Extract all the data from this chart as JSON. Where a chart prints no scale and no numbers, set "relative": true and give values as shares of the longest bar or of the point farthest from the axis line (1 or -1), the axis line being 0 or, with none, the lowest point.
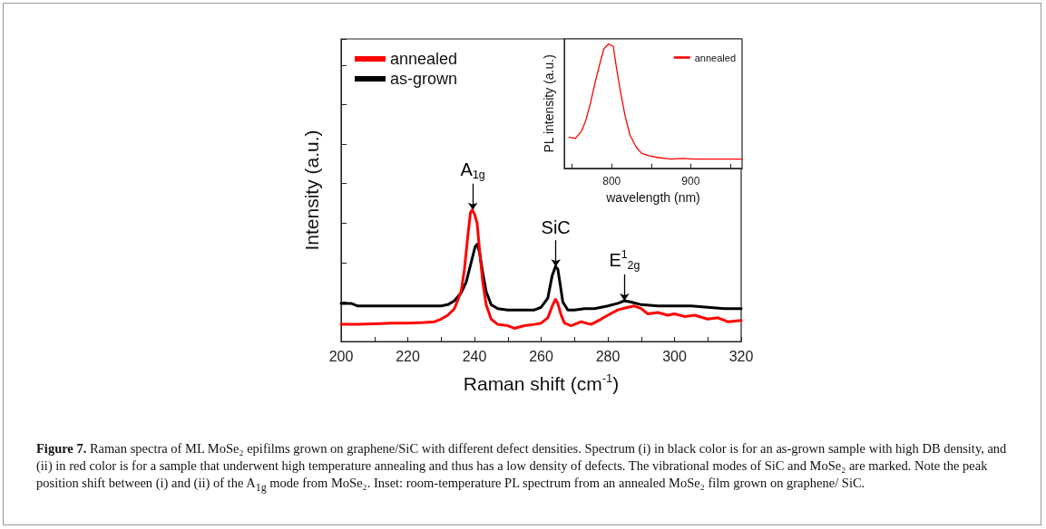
{
  "chart_data": [
    {
      "type": "line",
      "relative": true,
      "xlabel": "Raman shift (cm$^{-1}$)",
      "ylabel": "Intensity (a.u.)",
      "xlim": [
        200,
        320
      ],
      "xticks": [
        200,
        {
          "value": 210,
          "label": null
        },
        220,
        {
          "value": 230,
          "label": null
        },
        240,
        {
          "value": 250,
          "label": null
        },
        260,
        {
          "value": 270,
          "label": null
        },
        280,
        {
          "value": 290,
          "label": null
        },
        300,
        {
          "value": 310,
          "label": null
        },
        320
      ],
      "tick_labels": "x",
      "legend": "top left",
      "grid": false,
      "marker": "none",
      "line_style": "solid",
      "series": [
        {
          "name": "annealed",
          "color": "#ff0000",
          "x": [
            200,
            205,
            210,
            215,
            220,
            225,
            228,
            230,
            232,
            234,
            236,
            237,
            238,
            238.8,
            239.3,
            240,
            240.8,
            241.5,
            242.5,
            243.5,
            245,
            247,
            250,
            252,
            255,
            258,
            260,
            262,
            263.5,
            264.3,
            265,
            266,
            267,
            269,
            272,
            275,
            278,
            280,
            283,
            286,
            288,
            290,
            292,
            295,
            298,
            300,
            303,
            306,
            310,
            313,
            316,
            320
          ],
          "values": [
            0.13,
            0.13,
            0.135,
            0.14,
            0.14,
            0.145,
            0.15,
            0.17,
            0.2,
            0.25,
            0.38,
            0.55,
            0.8,
            0.98,
            1.0,
            0.97,
            0.9,
            0.7,
            0.45,
            0.28,
            0.17,
            0.13,
            0.12,
            0.1,
            0.12,
            0.13,
            0.14,
            0.18,
            0.28,
            0.32,
            0.29,
            0.2,
            0.14,
            0.12,
            0.15,
            0.13,
            0.17,
            0.2,
            0.24,
            0.26,
            0.27,
            0.25,
            0.21,
            0.22,
            0.2,
            0.21,
            0.19,
            0.2,
            0.17,
            0.18,
            0.15,
            0.16
          ]
        },
        {
          "name": "as-grown",
          "color": "#000000",
          "x": [
            200,
            203,
            205,
            210,
            215,
            220,
            225,
            230,
            232,
            234,
            236,
            237.5,
            239,
            240.2,
            240.8,
            241.5,
            242.5,
            243.5,
            245,
            247,
            250,
            255,
            258,
            260,
            262,
            263.3,
            264.3,
            265,
            265.8,
            266.5,
            268,
            270,
            273,
            276,
            278,
            280,
            283,
            285,
            287,
            290,
            295,
            300,
            305,
            310,
            315,
            320
          ],
          "values": [
            0.29,
            0.29,
            0.27,
            0.27,
            0.27,
            0.27,
            0.27,
            0.27,
            0.28,
            0.31,
            0.37,
            0.45,
            0.6,
            0.72,
            0.74,
            0.68,
            0.52,
            0.38,
            0.28,
            0.25,
            0.24,
            0.24,
            0.24,
            0.26,
            0.33,
            0.5,
            0.57,
            0.55,
            0.42,
            0.3,
            0.24,
            0.24,
            0.25,
            0.25,
            0.26,
            0.27,
            0.29,
            0.31,
            0.3,
            0.28,
            0.27,
            0.27,
            0.27,
            0.26,
            0.25,
            0.25
          ]
        }
      ],
      "annotations": [
        {
          "text": "A$_{1g}$",
          "x": 239.5,
          "y": 1.0
        },
        {
          "text": "SiC",
          "x": 264.4,
          "y": 0.57
        },
        {
          "text": "E$^{1}$$_{2g}$",
          "x": 285,
          "y": 0.31
        },
        "Figure 7. Raman spectra of ML MoSe₂ epifilms grown on graphene/SiC with different defect densities. Spectrum (i) in black color is for an as-grown sample with high DB density, and (ii) in red color is for a sample that underwent high temperature annealing and thus has a low density of defects. The vibrational modes of SiC and MoSe₂ are marked. Note the peak position shift between (i) and (ii) of the A$_{1g}$ mode from MoSe₂. Inset: room-temperature PL spectrum from an annealed MoSe₂ film grown on graphene/ SiC."
      ]
    },
    {
      "type": "line",
      "relative": true,
      "xlabel": "wavelength (nm)",
      "ylabel": "PL intensity (a.u.)",
      "xlim": [
        740,
        965
      ],
      "xticks": [
        {
          "value": 750,
          "label": null
        },
        800,
        {
          "value": 850,
          "label": null
        },
        900,
        {
          "value": 950,
          "label": null
        }
      ],
      "tick_labels": "x",
      "legend": "top right",
      "grid": false,
      "marker": "none",
      "line_style": "solid",
      "series": [
        {
          "name": "annealed",
          "color": "#ff0000",
          "x": [
            746,
            754,
            762,
            767,
            773,
            779,
            785,
            790,
            796,
            802,
            806,
            811,
            817,
            823,
            831,
            838,
            848,
            859,
            875,
            890,
            905,
            965
          ],
          "values": [
            0.25,
            0.24,
            0.3,
            0.38,
            0.52,
            0.69,
            0.84,
            0.96,
            1.0,
            0.98,
            0.81,
            0.62,
            0.42,
            0.27,
            0.17,
            0.12,
            0.1,
            0.086,
            0.074,
            0.08,
            0.074,
            0.074
          ]
        }
      ]
    }
  ]
}
